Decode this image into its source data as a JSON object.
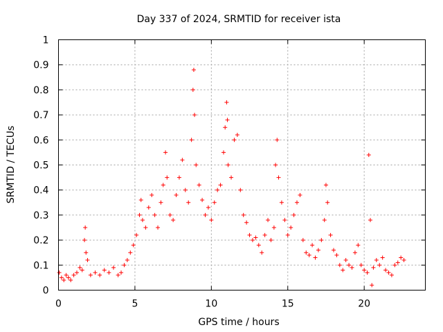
{
  "chart_data": {
    "type": "scatter",
    "title": "Day 337 of 2024, SRMTID for receiver ista",
    "xlabel": "GPS time / hours",
    "ylabel": "SRMTID / TECUs",
    "xlim": [
      0,
      24
    ],
    "ylim": [
      0,
      1
    ],
    "x_ticks": [
      {
        "value": 0,
        "label": "0"
      },
      {
        "value": 5,
        "label": "5"
      },
      {
        "value": 10,
        "label": "10"
      },
      {
        "value": 15,
        "label": "15"
      },
      {
        "value": 20,
        "label": "20"
      }
    ],
    "y_ticks": [
      {
        "value": 0,
        "label": "0"
      },
      {
        "value": 0.1,
        "label": "0.1"
      },
      {
        "value": 0.2,
        "label": "0.2"
      },
      {
        "value": 0.3,
        "label": "0.3"
      },
      {
        "value": 0.4,
        "label": "0.4"
      },
      {
        "value": 0.5,
        "label": "0.5"
      },
      {
        "value": 0.6,
        "label": "0.6"
      },
      {
        "value": 0.7,
        "label": "0.7"
      },
      {
        "value": 0.8,
        "label": "0.8"
      },
      {
        "value": 0.9,
        "label": "0.9"
      },
      {
        "value": 1,
        "label": "1"
      }
    ],
    "grid": true,
    "marker": "+",
    "series": [
      {
        "name": "SRMTID",
        "color": "#ff0000",
        "x": [
          0.05,
          0.2,
          0.35,
          0.5,
          0.65,
          0.8,
          1.0,
          1.2,
          1.4,
          1.55,
          1.7,
          1.75,
          1.8,
          1.9,
          2.1,
          2.4,
          2.7,
          3.0,
          3.3,
          3.6,
          3.9,
          4.1,
          4.3,
          4.5,
          4.7,
          4.9,
          5.1,
          5.3,
          5.4,
          5.5,
          5.7,
          5.9,
          6.1,
          6.3,
          6.5,
          6.7,
          6.85,
          7.0,
          7.1,
          7.3,
          7.5,
          7.7,
          7.9,
          8.1,
          8.3,
          8.5,
          8.7,
          8.8,
          8.85,
          8.9,
          9.0,
          9.2,
          9.4,
          9.6,
          9.8,
          10.0,
          10.2,
          10.4,
          10.6,
          10.8,
          10.9,
          11.0,
          11.05,
          11.1,
          11.3,
          11.5,
          11.7,
          11.9,
          12.1,
          12.3,
          12.5,
          12.7,
          12.9,
          13.1,
          13.3,
          13.5,
          13.7,
          13.9,
          14.1,
          14.2,
          14.3,
          14.4,
          14.6,
          14.8,
          15.0,
          15.2,
          15.4,
          15.6,
          15.8,
          16.0,
          16.2,
          16.4,
          16.6,
          16.8,
          17.0,
          17.2,
          17.4,
          17.5,
          17.6,
          17.8,
          18.0,
          18.2,
          18.4,
          18.6,
          18.8,
          19.0,
          19.2,
          19.4,
          19.6,
          19.8,
          20.0,
          20.2,
          20.3,
          20.4,
          20.5,
          20.6,
          20.8,
          21.0,
          21.2,
          21.4,
          21.6,
          21.8,
          22.0,
          22.2,
          22.4,
          22.6
        ],
        "y": [
          0.07,
          0.05,
          0.04,
          0.06,
          0.05,
          0.04,
          0.06,
          0.07,
          0.09,
          0.08,
          0.2,
          0.25,
          0.15,
          0.12,
          0.06,
          0.07,
          0.06,
          0.08,
          0.07,
          0.09,
          0.06,
          0.07,
          0.1,
          0.12,
          0.15,
          0.18,
          0.22,
          0.3,
          0.36,
          0.28,
          0.25,
          0.33,
          0.38,
          0.3,
          0.25,
          0.35,
          0.42,
          0.55,
          0.45,
          0.3,
          0.28,
          0.38,
          0.45,
          0.52,
          0.4,
          0.35,
          0.6,
          0.8,
          0.88,
          0.7,
          0.5,
          0.42,
          0.36,
          0.3,
          0.33,
          0.28,
          0.35,
          0.4,
          0.42,
          0.55,
          0.65,
          0.75,
          0.68,
          0.5,
          0.45,
          0.6,
          0.62,
          0.4,
          0.3,
          0.27,
          0.22,
          0.2,
          0.21,
          0.18,
          0.15,
          0.22,
          0.28,
          0.2,
          0.25,
          0.5,
          0.6,
          0.45,
          0.35,
          0.28,
          0.22,
          0.25,
          0.3,
          0.35,
          0.38,
          0.2,
          0.15,
          0.14,
          0.18,
          0.13,
          0.16,
          0.2,
          0.28,
          0.42,
          0.35,
          0.22,
          0.16,
          0.14,
          0.1,
          0.08,
          0.12,
          0.1,
          0.09,
          0.15,
          0.18,
          0.1,
          0.08,
          0.07,
          0.54,
          0.28,
          0.02,
          0.09,
          0.12,
          0.1,
          0.13,
          0.08,
          0.07,
          0.06,
          0.1,
          0.11,
          0.13,
          0.12
        ]
      }
    ]
  }
}
